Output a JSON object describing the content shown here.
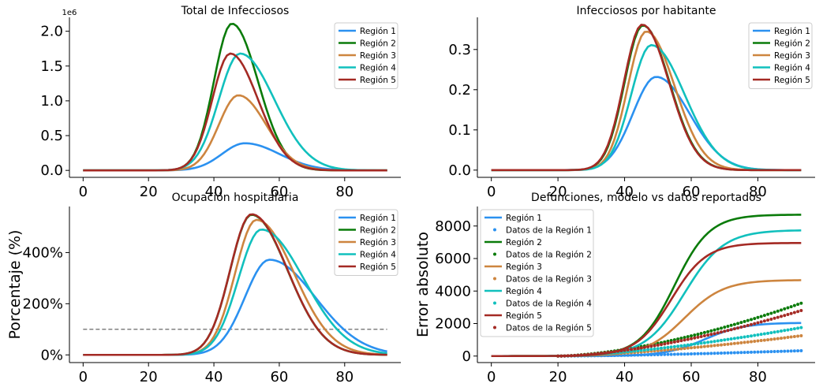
{
  "colors": {
    "region_1": "#2b91f0",
    "region_2": "#0a7b0a",
    "region_3": "#cd853f",
    "region_4": "#11c0bd",
    "region_5": "#a42a24",
    "reference": "#808080"
  },
  "chart_data": [
    {
      "type": "line",
      "title": "Total de Infecciosos",
      "xlabel": "",
      "ylabel": "",
      "x_range": [
        0,
        93
      ],
      "ylim": [
        -100000,
        2200000
      ],
      "x_ticks": [
        0,
        20,
        40,
        60,
        80
      ],
      "y_ticks": [
        0,
        500000,
        1000000,
        1500000,
        2000000
      ],
      "y_tick_labels": [
        "0.0",
        "0.5",
        "1.0",
        "1.5",
        "2.0"
      ],
      "offset_text": "1e6",
      "legend": "top-right",
      "series": [
        {
          "name": "Región 1",
          "color_key": "region_1",
          "peak_x": 49.5,
          "peak_y": 390000,
          "left_width": 7.0,
          "right_width": 10.5
        },
        {
          "name": "Región 2",
          "color_key": "region_2",
          "peak_x": 45.5,
          "peak_y": 2110000,
          "left_width": 5.5,
          "right_width": 8.0
        },
        {
          "name": "Región 3",
          "color_key": "region_3",
          "peak_x": 47.5,
          "peak_y": 1080000,
          "left_width": 6.0,
          "right_width": 8.5
        },
        {
          "name": "Región 4",
          "color_key": "region_4",
          "peak_x": 48.0,
          "peak_y": 1680000,
          "left_width": 6.5,
          "right_width": 10.5
        },
        {
          "name": "Región 5",
          "color_key": "region_5",
          "peak_x": 45.0,
          "peak_y": 1680000,
          "left_width": 5.5,
          "right_width": 8.5
        }
      ]
    },
    {
      "type": "line",
      "title": "Infecciosos por habitante",
      "xlabel": "",
      "ylabel": "",
      "x_range": [
        0,
        93
      ],
      "ylim": [
        -0.018,
        0.38
      ],
      "x_ticks": [
        0,
        20,
        40,
        60,
        80
      ],
      "y_ticks": [
        0,
        0.1,
        0.2,
        0.3
      ],
      "y_tick_labels": [
        "0.0",
        "0.1",
        "0.2",
        "0.3"
      ],
      "legend": "top-right",
      "series": [
        {
          "name": "Región 1",
          "color_key": "region_1",
          "peak_x": 49.5,
          "peak_y": 0.232,
          "left_width": 7.0,
          "right_width": 10.0
        },
        {
          "name": "Región 2",
          "color_key": "region_2",
          "peak_x": 45.5,
          "peak_y": 0.36,
          "left_width": 5.5,
          "right_width": 8.0
        },
        {
          "name": "Región 3",
          "color_key": "region_3",
          "peak_x": 46.5,
          "peak_y": 0.345,
          "left_width": 5.5,
          "right_width": 8.5
        },
        {
          "name": "Región 4",
          "color_key": "region_4",
          "peak_x": 48.0,
          "peak_y": 0.311,
          "left_width": 6.0,
          "right_width": 10.0
        },
        {
          "name": "Región 5",
          "color_key": "region_5",
          "peak_x": 45.3,
          "peak_y": 0.362,
          "left_width": 5.5,
          "right_width": 8.0
        }
      ]
    },
    {
      "type": "line",
      "title": "Ocupación hospitalaria",
      "xlabel": "",
      "ylabel": "Porcentaje (%)",
      "x_range": [
        0,
        93
      ],
      "ylim": [
        -30,
        580
      ],
      "x_ticks": [
        0,
        20,
        40,
        60,
        80
      ],
      "y_ticks": [
        0,
        200,
        400
      ],
      "y_tick_labels": [
        "0%",
        "200%",
        "400%"
      ],
      "reference_line": {
        "y": 100,
        "style": "dashed"
      },
      "legend": "top-right",
      "series": [
        {
          "name": "Región 1",
          "color_key": "region_1",
          "peak_x": 57.0,
          "peak_y": 372,
          "left_width": 7.5,
          "right_width": 14.0
        },
        {
          "name": "Región 2",
          "color_key": "region_2",
          "peak_x": 51.5,
          "peak_y": 548,
          "left_width": 6.5,
          "right_width": 11.0
        },
        {
          "name": "Región 3",
          "color_key": "region_3",
          "peak_x": 53.0,
          "peak_y": 528,
          "left_width": 6.5,
          "right_width": 11.5
        },
        {
          "name": "Región 4",
          "color_key": "region_4",
          "peak_x": 54.5,
          "peak_y": 490,
          "left_width": 7.0,
          "right_width": 13.0
        },
        {
          "name": "Región 5",
          "color_key": "region_5",
          "peak_x": 51.5,
          "peak_y": 550,
          "left_width": 6.5,
          "right_width": 11.0
        }
      ]
    },
    {
      "type": "line",
      "title": "Defunciones, modelo vs datos reportados",
      "xlabel": "",
      "ylabel": "Error absoluto",
      "x_range": [
        0,
        93
      ],
      "ylim": [
        -400,
        9200
      ],
      "x_ticks": [
        0,
        20,
        40,
        60,
        80
      ],
      "y_ticks": [
        0,
        2000,
        4000,
        6000,
        8000
      ],
      "y_tick_labels": [
        "0",
        "2000",
        "4000",
        "6000",
        "8000"
      ],
      "legend": "top-left",
      "series": [
        {
          "name": "Región 1",
          "color_key": "region_1",
          "kind": "line",
          "final": 2050,
          "midpoint": 64,
          "rate": 0.17
        },
        {
          "name": "Datos de la Región 1",
          "color_key": "region_1",
          "kind": "scatter",
          "final": 330,
          "start_x": 20,
          "power": 1.5
        },
        {
          "name": "Región 2",
          "color_key": "region_2",
          "kind": "line",
          "final": 8700,
          "midpoint": 55,
          "rate": 0.19
        },
        {
          "name": "Datos de la Región 2",
          "color_key": "region_2",
          "kind": "scatter",
          "final": 3250,
          "start_x": 20,
          "power": 1.6
        },
        {
          "name": "Región 3",
          "color_key": "region_3",
          "kind": "line",
          "final": 4680,
          "midpoint": 58,
          "rate": 0.17
        },
        {
          "name": "Datos de la Región 3",
          "color_key": "region_3",
          "kind": "scatter",
          "final": 1250,
          "start_x": 20,
          "power": 1.5
        },
        {
          "name": "Región 4",
          "color_key": "region_4",
          "kind": "line",
          "final": 7750,
          "midpoint": 58,
          "rate": 0.17
        },
        {
          "name": "Datos de la Región 4",
          "color_key": "region_4",
          "kind": "scatter",
          "final": 1750,
          "start_x": 20,
          "power": 1.5
        },
        {
          "name": "Región 5",
          "color_key": "region_5",
          "kind": "line",
          "final": 6960,
          "midpoint": 54,
          "rate": 0.19
        },
        {
          "name": "Datos de la Región 5",
          "color_key": "region_5",
          "kind": "scatter",
          "final": 2800,
          "start_x": 20,
          "power": 1.6
        }
      ]
    }
  ]
}
